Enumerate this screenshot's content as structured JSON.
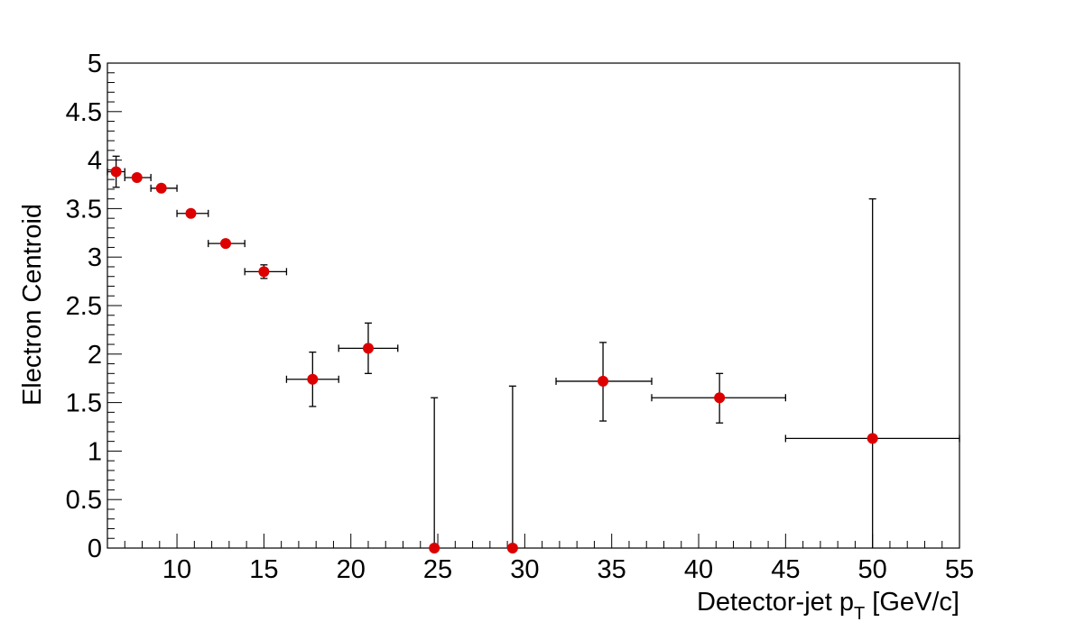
{
  "chart_data": {
    "type": "scatter",
    "title": "",
    "xlabel": "Detector-jet p",
    "xlabel_subscript": "T",
    "xlabel_unit": " [GeV/c]",
    "ylabel": "Electron Centroid",
    "xlim": [
      6,
      55
    ],
    "ylim": [
      0,
      5
    ],
    "x_ticks": [
      10,
      15,
      20,
      25,
      30,
      35,
      40,
      45,
      50,
      55
    ],
    "x_tick_labels": [
      "10",
      "15",
      "20",
      "25",
      "30",
      "35",
      "40",
      "45",
      "50",
      "55"
    ],
    "y_ticks": [
      0,
      0.5,
      1,
      1.5,
      2,
      2.5,
      3,
      3.5,
      4,
      4.5,
      5
    ],
    "y_tick_labels": [
      "0",
      "0.5",
      "1",
      "1.5",
      "2",
      "2.5",
      "3",
      "3.5",
      "4",
      "4.5",
      "5"
    ],
    "grid": false,
    "marker_color": "#dd0000",
    "series": [
      {
        "points": [
          {
            "x": 6.5,
            "y": 3.88,
            "xerr": [
              6.0,
              7.0
            ],
            "yerr": [
              3.72,
              4.04
            ]
          },
          {
            "x": 7.7,
            "y": 3.82,
            "xerr": [
              7.0,
              8.5
            ],
            "yerr": [
              3.8,
              3.84
            ]
          },
          {
            "x": 9.1,
            "y": 3.71,
            "xerr": [
              8.5,
              10.0
            ],
            "yerr": [
              3.69,
              3.73
            ]
          },
          {
            "x": 10.8,
            "y": 3.45,
            "xerr": [
              10.0,
              11.8
            ],
            "yerr": [
              3.43,
              3.47
            ]
          },
          {
            "x": 12.8,
            "y": 3.14,
            "xerr": [
              11.8,
              13.9
            ],
            "yerr": [
              3.12,
              3.16
            ]
          },
          {
            "x": 15.0,
            "y": 2.85,
            "xerr": [
              13.9,
              16.3
            ],
            "yerr": [
              2.78,
              2.92
            ]
          },
          {
            "x": 17.8,
            "y": 1.74,
            "xerr": [
              16.3,
              19.3
            ],
            "yerr": [
              1.46,
              2.02
            ]
          },
          {
            "x": 21.0,
            "y": 2.06,
            "xerr": [
              19.3,
              22.7
            ],
            "yerr": [
              1.8,
              2.32
            ]
          },
          {
            "x": 24.8,
            "y": 0.0,
            "xerr": [
              24.8,
              24.8
            ],
            "yerr": [
              0.0,
              1.55
            ]
          },
          {
            "x": 29.3,
            "y": 0.0,
            "xerr": [
              29.3,
              29.3
            ],
            "yerr": [
              0.0,
              1.67
            ]
          },
          {
            "x": 34.5,
            "y": 1.72,
            "xerr": [
              31.8,
              37.3
            ],
            "yerr": [
              1.31,
              2.12
            ]
          },
          {
            "x": 41.2,
            "y": 1.55,
            "xerr": [
              37.3,
              45.0
            ],
            "yerr": [
              1.29,
              1.8
            ]
          },
          {
            "x": 50.0,
            "y": 1.13,
            "xerr": [
              45.0,
              55.0
            ],
            "yerr": [
              0.0,
              3.6
            ]
          }
        ]
      }
    ]
  }
}
